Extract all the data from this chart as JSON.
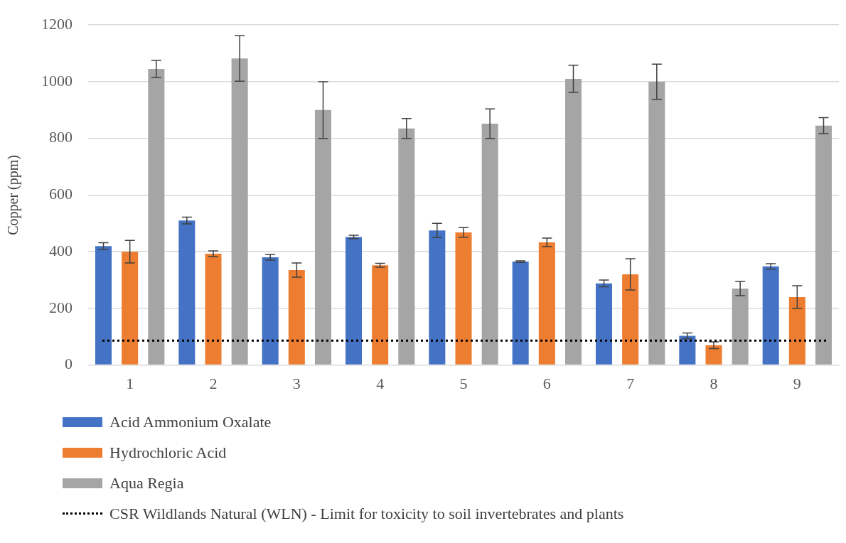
{
  "chart_data": {
    "type": "bar",
    "categories": [
      "1",
      "2",
      "3",
      "4",
      "5",
      "6",
      "7",
      "8",
      "9"
    ],
    "ylabel": "Copper (ppm)",
    "ylim": [
      0,
      1200
    ],
    "yticks": [
      0,
      200,
      400,
      600,
      800,
      1000,
      1200
    ],
    "grid": "y",
    "legend": "bottom",
    "series": [
      {
        "name": "Acid Ammonium Oxalate",
        "color": "#4472c4",
        "values": [
          420,
          510,
          380,
          452,
          475,
          365,
          288,
          103,
          348
        ],
        "errors": [
          12,
          12,
          10,
          6,
          25,
          3,
          12,
          10,
          10
        ]
      },
      {
        "name": "Hydrochloric Acid",
        "color": "#ed7d31",
        "values": [
          400,
          393,
          335,
          352,
          468,
          433,
          320,
          70,
          240
        ],
        "errors": [
          40,
          10,
          25,
          7,
          17,
          15,
          55,
          12,
          40
        ]
      },
      {
        "name": "Aqua Regia",
        "color": "#a5a5a5",
        "values": [
          1045,
          1082,
          900,
          835,
          852,
          1010,
          1000,
          270,
          845
        ],
        "errors": [
          30,
          80,
          100,
          35,
          52,
          48,
          62,
          25,
          28
        ]
      }
    ],
    "ref_lines": [
      {
        "axis": "y",
        "value": 86,
        "label": "CSR Wildlands Natural (WLN) - Limit for toxicity to soil invertebrates and plants",
        "color": "#000000",
        "line_style": "dotted"
      }
    ]
  }
}
